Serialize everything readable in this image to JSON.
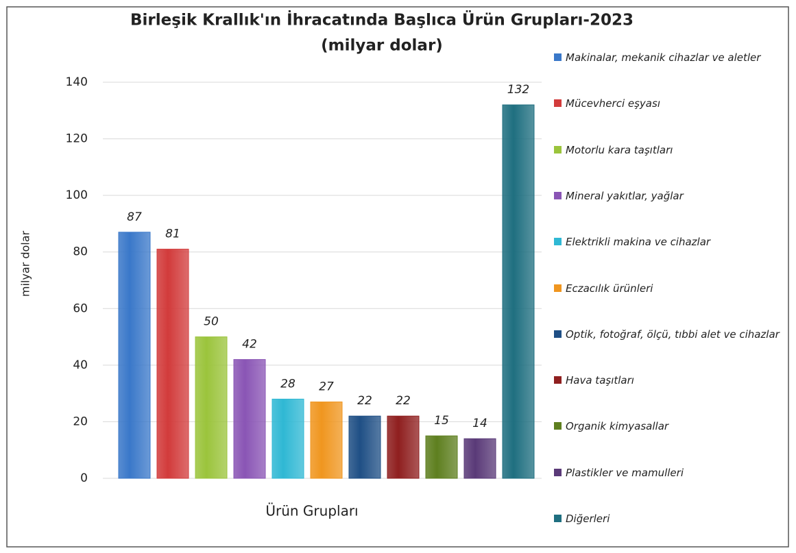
{
  "chart_data": {
    "type": "bar",
    "title": "Birleşik Krallık'ın İhracatında Başlıca Ürün Grupları-2023",
    "subtitle": "(milyar dolar)",
    "y_label": "milyar dolar",
    "x_label": "Ürün Grupları",
    "ylim": [
      0,
      140
    ],
    "yticks": [
      0,
      20,
      40,
      60,
      80,
      100,
      120,
      140
    ],
    "grid": true,
    "legend": "right",
    "series": [
      {
        "name": "Makinalar, mekanik cihazlar ve aletler",
        "color": "#3a78c9",
        "values": [
          87
        ]
      },
      {
        "name": "Mücevherci eşyası",
        "color": "#d23b3b",
        "values": [
          81
        ]
      },
      {
        "name": "Motorlu kara taşıtları",
        "color": "#9bc43c",
        "values": [
          50
        ]
      },
      {
        "name": "Mineral yakıtlar, yağlar",
        "color": "#8a55b5",
        "values": [
          42
        ]
      },
      {
        "name": "Elektrikli makina ve cihazlar",
        "color": "#2fb8d4",
        "values": [
          28
        ]
      },
      {
        "name": "Eczacılık ürünleri",
        "color": "#f0961f",
        "values": [
          27
        ]
      },
      {
        "name": "Optik, fotoğraf, ölçü, tıbbi alet ve cihazlar",
        "color": "#1f4f85",
        "values": [
          22
        ]
      },
      {
        "name": "Hava taşıtları",
        "color": "#8f1f1f",
        "values": [
          22
        ]
      },
      {
        "name": "Organik kimyasallar",
        "color": "#5e7f1f",
        "values": [
          15
        ]
      },
      {
        "name": "Plastikler ve mamulleri",
        "color": "#5a3a78",
        "values": [
          14
        ]
      },
      {
        "name": "Diğerleri",
        "color": "#1f6f80",
        "values": [
          132
        ]
      }
    ]
  }
}
